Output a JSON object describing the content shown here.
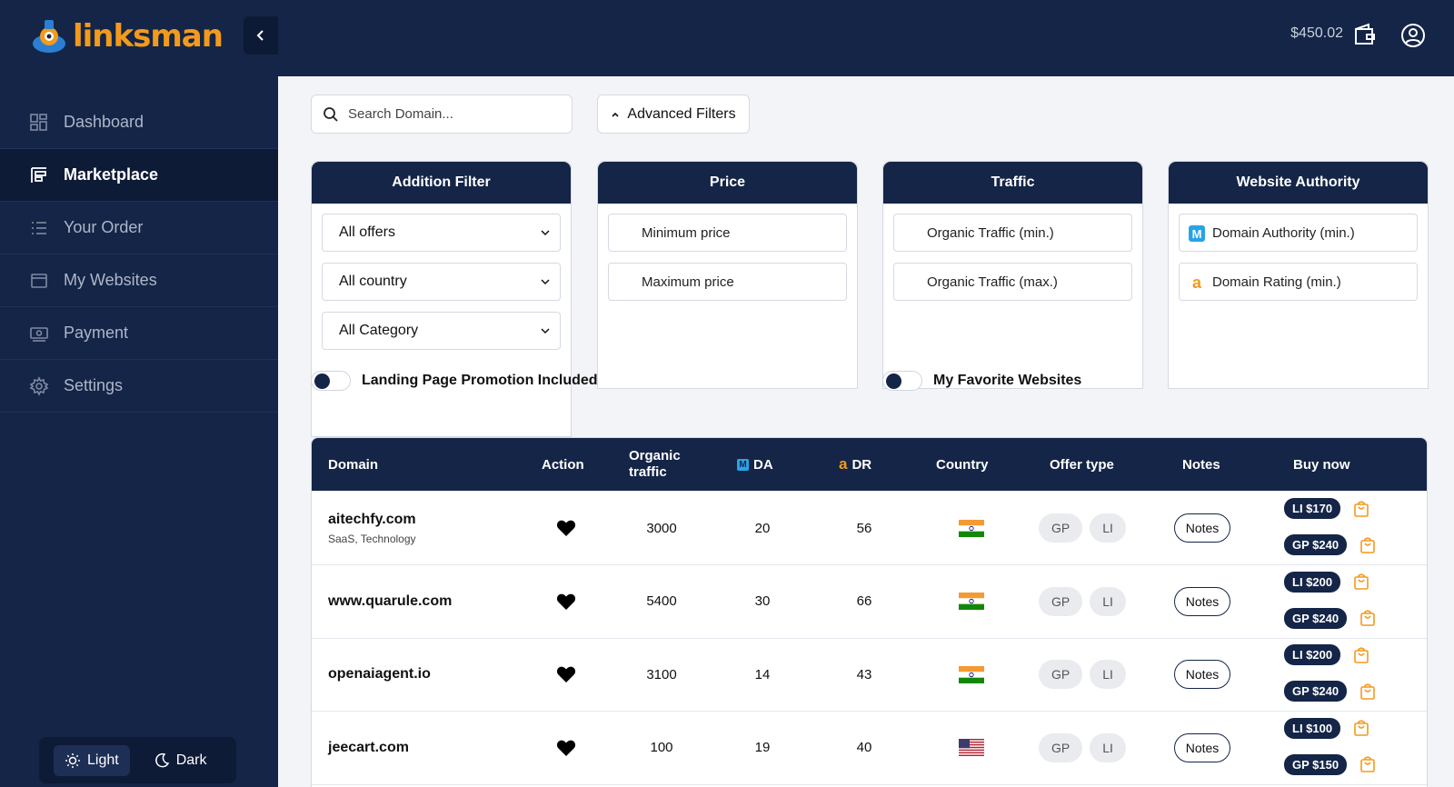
{
  "brand": {
    "name": "linksman"
  },
  "sidebar": {
    "items": [
      {
        "label": "Dashboard",
        "icon": "grid-icon",
        "active": false
      },
      {
        "label": "Marketplace",
        "icon": "marketplace-icon",
        "active": true
      },
      {
        "label": "Your Order",
        "icon": "list-icon",
        "active": false
      },
      {
        "label": "My Websites",
        "icon": "window-icon",
        "active": false
      },
      {
        "label": "Payment",
        "icon": "money-icon",
        "active": false
      },
      {
        "label": "Settings",
        "icon": "gear-icon",
        "active": false
      }
    ],
    "theme": {
      "light": "Light",
      "dark": "Dark"
    }
  },
  "header": {
    "balance": "$450.02"
  },
  "filters": {
    "search_placeholder": "Search Domain...",
    "advanced_label": "Advanced Filters",
    "addition": {
      "title": "Addition Filter",
      "offers": "All offers",
      "country": "All country",
      "category": "All Category"
    },
    "price": {
      "title": "Price",
      "min": "Minimum price",
      "max": "Maximum price"
    },
    "traffic": {
      "title": "Traffic",
      "min": "Organic Traffic (min.)",
      "max": "Organic Traffic (max.)"
    },
    "authority": {
      "title": "Website Authority",
      "da": "Domain Authority (min.)",
      "dr": "Domain Rating (min.)"
    },
    "toggle_landing": "Landing Page Promotion Included",
    "toggle_favorite": "My Favorite Websites"
  },
  "table": {
    "headers": {
      "domain": "Domain",
      "action": "Action",
      "traffic1": "Organic",
      "traffic2": "traffic",
      "da": "DA",
      "dr": "DR",
      "country": "Country",
      "offer": "Offer type",
      "notes": "Notes",
      "buy": "Buy now"
    },
    "rows": [
      {
        "domain": "aitechfy.com",
        "category": "SaaS, Technology",
        "traffic": "3000",
        "da": "20",
        "dr": "56",
        "country": "india",
        "offer1": "GP",
        "offer2": "LI",
        "notes": "Notes",
        "li_price": "LI $170",
        "gp_price": "GP $240"
      },
      {
        "domain": "www.quarule.com",
        "category": "",
        "traffic": "5400",
        "da": "30",
        "dr": "66",
        "country": "india",
        "offer1": "GP",
        "offer2": "LI",
        "notes": "Notes",
        "li_price": "LI $200",
        "gp_price": "GP $240"
      },
      {
        "domain": "openaiagent.io",
        "category": "",
        "traffic": "3100",
        "da": "14",
        "dr": "43",
        "country": "india",
        "offer1": "GP",
        "offer2": "LI",
        "notes": "Notes",
        "li_price": "LI $200",
        "gp_price": "GP $240"
      },
      {
        "domain": "jeecart.com",
        "category": "",
        "traffic": "100",
        "da": "19",
        "dr": "40",
        "country": "usa",
        "offer1": "GP",
        "offer2": "LI",
        "notes": "Notes",
        "li_price": "LI $100",
        "gp_price": "GP $150"
      }
    ]
  },
  "colors": {
    "navy": "#142547",
    "accent": "#f39a1c"
  }
}
